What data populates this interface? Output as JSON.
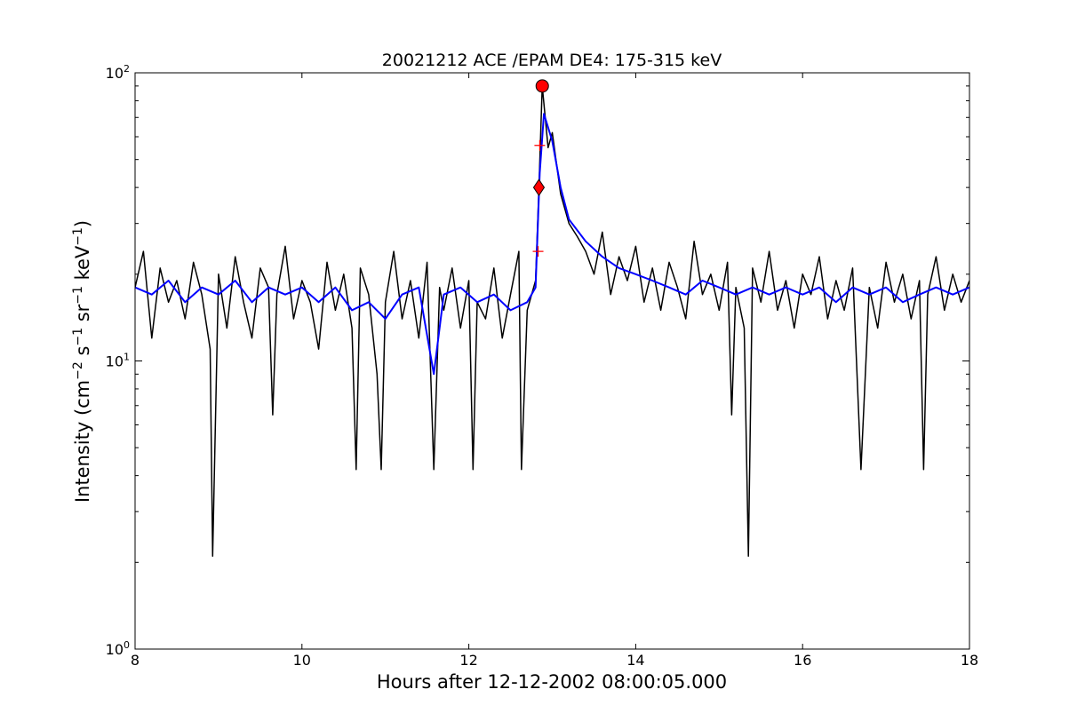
{
  "chart_data": {
    "type": "line",
    "title": "20021212 ACE /EPAM DE4: 175-315 keV",
    "xlabel": "Hours after 12-12-2002 08:00:05.000",
    "ylabel": "Intensity (cm",
    "ylabel_parts": [
      "Intensity (cm",
      "−2",
      " s",
      "−1",
      " sr",
      "−1",
      " keV",
      "−1",
      ")"
    ],
    "xlim": [
      8,
      18
    ],
    "ylim": [
      1,
      100
    ],
    "yscale": "log",
    "xticks": [
      "8",
      "10",
      "12",
      "14",
      "16",
      "18"
    ],
    "yticks": [
      {
        "base": "10",
        "exp": "0",
        "value": 1
      },
      {
        "base": "10",
        "exp": "1",
        "value": 10
      },
      {
        "base": "10",
        "exp": "2",
        "value": 100
      }
    ],
    "grid": false,
    "series": [
      {
        "style": "raw",
        "color": "#000000",
        "points": [
          [
            8.0,
            18
          ],
          [
            8.1,
            24
          ],
          [
            8.2,
            12
          ],
          [
            8.3,
            21
          ],
          [
            8.4,
            16
          ],
          [
            8.5,
            19
          ],
          [
            8.6,
            14
          ],
          [
            8.7,
            22
          ],
          [
            8.8,
            17
          ],
          [
            8.9,
            11
          ],
          [
            8.93,
            2.1
          ],
          [
            9.0,
            20
          ],
          [
            9.1,
            13
          ],
          [
            9.2,
            23
          ],
          [
            9.3,
            16
          ],
          [
            9.4,
            12
          ],
          [
            9.5,
            21
          ],
          [
            9.6,
            18
          ],
          [
            9.65,
            6.5
          ],
          [
            9.7,
            17
          ],
          [
            9.8,
            25
          ],
          [
            9.9,
            14
          ],
          [
            10.0,
            19
          ],
          [
            10.1,
            16
          ],
          [
            10.2,
            11
          ],
          [
            10.3,
            22
          ],
          [
            10.4,
            15
          ],
          [
            10.5,
            20
          ],
          [
            10.6,
            13
          ],
          [
            10.65,
            4.2
          ],
          [
            10.7,
            21
          ],
          [
            10.8,
            17
          ],
          [
            10.9,
            9
          ],
          [
            10.95,
            4.2
          ],
          [
            11.0,
            16
          ],
          [
            11.1,
            24
          ],
          [
            11.2,
            14
          ],
          [
            11.3,
            19
          ],
          [
            11.4,
            12
          ],
          [
            11.5,
            22
          ],
          [
            11.58,
            4.2
          ],
          [
            11.65,
            18
          ],
          [
            11.7,
            15
          ],
          [
            11.8,
            21
          ],
          [
            11.9,
            13
          ],
          [
            12.0,
            19
          ],
          [
            12.05,
            4.2
          ],
          [
            12.1,
            16
          ],
          [
            12.2,
            14
          ],
          [
            12.3,
            21
          ],
          [
            12.4,
            12
          ],
          [
            12.5,
            17
          ],
          [
            12.6,
            24
          ],
          [
            12.63,
            4.2
          ],
          [
            12.7,
            15
          ],
          [
            12.8,
            19
          ],
          [
            12.84,
            40
          ],
          [
            12.88,
            90
          ],
          [
            12.95,
            55
          ],
          [
            13.0,
            62
          ],
          [
            13.1,
            38
          ],
          [
            13.2,
            30
          ],
          [
            13.3,
            27
          ],
          [
            13.4,
            24
          ],
          [
            13.5,
            20
          ],
          [
            13.6,
            28
          ],
          [
            13.7,
            17
          ],
          [
            13.8,
            23
          ],
          [
            13.9,
            19
          ],
          [
            14.0,
            25
          ],
          [
            14.1,
            16
          ],
          [
            14.2,
            21
          ],
          [
            14.3,
            15
          ],
          [
            14.4,
            22
          ],
          [
            14.5,
            18
          ],
          [
            14.6,
            14
          ],
          [
            14.7,
            26
          ],
          [
            14.8,
            17
          ],
          [
            14.9,
            20
          ],
          [
            15.0,
            15
          ],
          [
            15.1,
            22
          ],
          [
            15.15,
            6.5
          ],
          [
            15.2,
            18
          ],
          [
            15.3,
            13
          ],
          [
            15.35,
            2.1
          ],
          [
            15.4,
            21
          ],
          [
            15.5,
            16
          ],
          [
            15.6,
            24
          ],
          [
            15.7,
            15
          ],
          [
            15.8,
            19
          ],
          [
            15.9,
            13
          ],
          [
            16.0,
            20
          ],
          [
            16.1,
            17
          ],
          [
            16.2,
            23
          ],
          [
            16.3,
            14
          ],
          [
            16.4,
            19
          ],
          [
            16.5,
            15
          ],
          [
            16.6,
            21
          ],
          [
            16.7,
            4.2
          ],
          [
            16.8,
            18
          ],
          [
            16.9,
            13
          ],
          [
            17.0,
            22
          ],
          [
            17.1,
            16
          ],
          [
            17.2,
            20
          ],
          [
            17.3,
            14
          ],
          [
            17.4,
            19
          ],
          [
            17.45,
            4.2
          ],
          [
            17.5,
            17
          ],
          [
            17.6,
            23
          ],
          [
            17.7,
            15
          ],
          [
            17.8,
            20
          ],
          [
            17.9,
            16
          ],
          [
            18.0,
            19
          ]
        ]
      },
      {
        "style": "smoothed",
        "color": "#0000ff",
        "points": [
          [
            8.0,
            18
          ],
          [
            8.2,
            17
          ],
          [
            8.4,
            19
          ],
          [
            8.6,
            16
          ],
          [
            8.8,
            18
          ],
          [
            9.0,
            17
          ],
          [
            9.2,
            19
          ],
          [
            9.4,
            16
          ],
          [
            9.6,
            18
          ],
          [
            9.8,
            17
          ],
          [
            10.0,
            18
          ],
          [
            10.2,
            16
          ],
          [
            10.4,
            18
          ],
          [
            10.6,
            15
          ],
          [
            10.8,
            16
          ],
          [
            11.0,
            14
          ],
          [
            11.2,
            17
          ],
          [
            11.4,
            18
          ],
          [
            11.58,
            9
          ],
          [
            11.7,
            17
          ],
          [
            11.9,
            18
          ],
          [
            12.1,
            16
          ],
          [
            12.3,
            17
          ],
          [
            12.5,
            15
          ],
          [
            12.7,
            16
          ],
          [
            12.8,
            18
          ],
          [
            12.85,
            45
          ],
          [
            12.9,
            72
          ],
          [
            13.0,
            58
          ],
          [
            13.1,
            40
          ],
          [
            13.2,
            31
          ],
          [
            13.4,
            26
          ],
          [
            13.6,
            23
          ],
          [
            13.8,
            21
          ],
          [
            14.0,
            20
          ],
          [
            14.2,
            19
          ],
          [
            14.4,
            18
          ],
          [
            14.6,
            17
          ],
          [
            14.8,
            19
          ],
          [
            15.0,
            18
          ],
          [
            15.2,
            17
          ],
          [
            15.4,
            18
          ],
          [
            15.6,
            17
          ],
          [
            15.8,
            18
          ],
          [
            16.0,
            17
          ],
          [
            16.2,
            18
          ],
          [
            16.4,
            16
          ],
          [
            16.6,
            18
          ],
          [
            16.8,
            17
          ],
          [
            17.0,
            18
          ],
          [
            17.2,
            16
          ],
          [
            17.4,
            17
          ],
          [
            17.6,
            18
          ],
          [
            17.8,
            17
          ],
          [
            18.0,
            18
          ]
        ]
      }
    ],
    "markers": [
      {
        "shape": "circle",
        "x": 12.88,
        "y": 90,
        "color": "#ff0000"
      },
      {
        "shape": "diamond",
        "x": 12.84,
        "y": 40,
        "color": "#ff0000"
      },
      {
        "shape": "plus",
        "x": 12.85,
        "y": 56,
        "color": "#ff0000"
      },
      {
        "shape": "plus",
        "x": 12.83,
        "y": 24,
        "color": "#ff0000"
      }
    ]
  }
}
